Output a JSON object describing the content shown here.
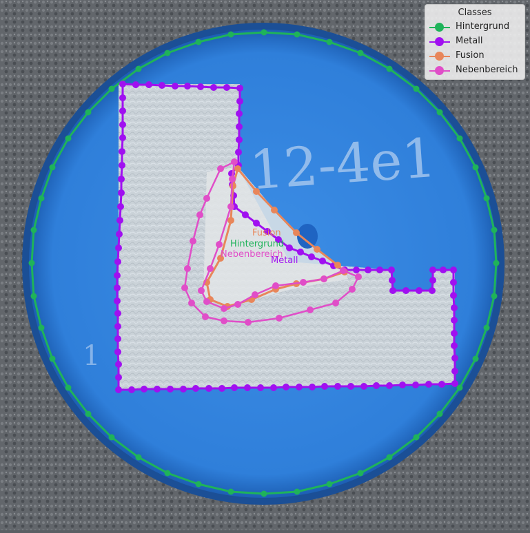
{
  "image": {
    "specimen_marking": "12-4e1",
    "side_marking": "1"
  },
  "legend": {
    "title": "Classes",
    "items": [
      {
        "label": "Hintergrund",
        "color": "#1fb35a"
      },
      {
        "label": "Metall",
        "color": "#a010f0"
      },
      {
        "label": "Fusion",
        "color": "#e8865a"
      },
      {
        "label": "Nebenbereich",
        "color": "#e04ec8"
      }
    ]
  },
  "overlay_labels": {
    "fusion": "Fusion",
    "hintergrund": "Hintergrund",
    "nebenbereich": "Nebenbereich",
    "metall": "Metall"
  }
}
